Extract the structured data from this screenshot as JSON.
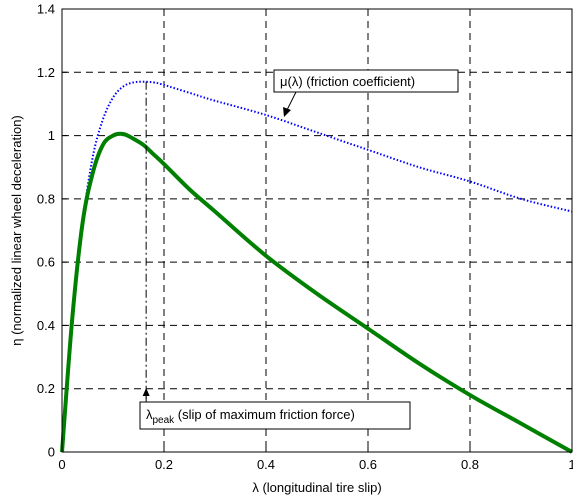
{
  "chart_data": {
    "type": "line",
    "xlabel": "λ  (longitudinal tire slip)",
    "ylabel": "η  (normalized linear wheel deceleration)",
    "xlim": [
      0,
      1
    ],
    "ylim": [
      0,
      1.4
    ],
    "xticks": [
      "0",
      "0.2",
      "0.4",
      "0.6",
      "0.8",
      "1"
    ],
    "yticks": [
      "0",
      "0.2",
      "0.4",
      "0.6",
      "0.8",
      "1",
      "1.2",
      "1.4"
    ],
    "grid": true,
    "series": [
      {
        "name": "μ(λ) (friction coefficient)",
        "color": "#0000ff",
        "style": "dotted",
        "x": [
          0,
          0.02,
          0.04,
          0.06,
          0.08,
          0.1,
          0.12,
          0.14,
          0.16,
          0.18,
          0.2,
          0.25,
          0.3,
          0.4,
          0.5,
          0.6,
          0.7,
          0.8,
          0.9,
          1.0
        ],
        "y": [
          0,
          0.42,
          0.72,
          0.93,
          1.05,
          1.12,
          1.155,
          1.168,
          1.17,
          1.168,
          1.16,
          1.135,
          1.11,
          1.065,
          1.01,
          0.955,
          0.9,
          0.855,
          0.8,
          0.76
        ]
      },
      {
        "name": "η",
        "color": "#008000",
        "style": "solid",
        "x": [
          0,
          0.02,
          0.04,
          0.06,
          0.08,
          0.1,
          0.12,
          0.14,
          0.16,
          0.18,
          0.2,
          0.25,
          0.3,
          0.4,
          0.5,
          0.6,
          0.7,
          0.8,
          0.9,
          1.0
        ],
        "y": [
          0,
          0.42,
          0.72,
          0.88,
          0.97,
          1.0,
          1.005,
          0.99,
          0.97,
          0.94,
          0.91,
          0.83,
          0.76,
          0.62,
          0.5,
          0.39,
          0.28,
          0.18,
          0.09,
          0.0
        ]
      }
    ],
    "annotations": {
      "mu_label": "μ(λ) (friction coefficient)",
      "peak_symbol": "λ",
      "peak_subscript": "peak",
      "peak_text": " (slip of maximum friction force)",
      "peak_x": 0.165
    }
  }
}
